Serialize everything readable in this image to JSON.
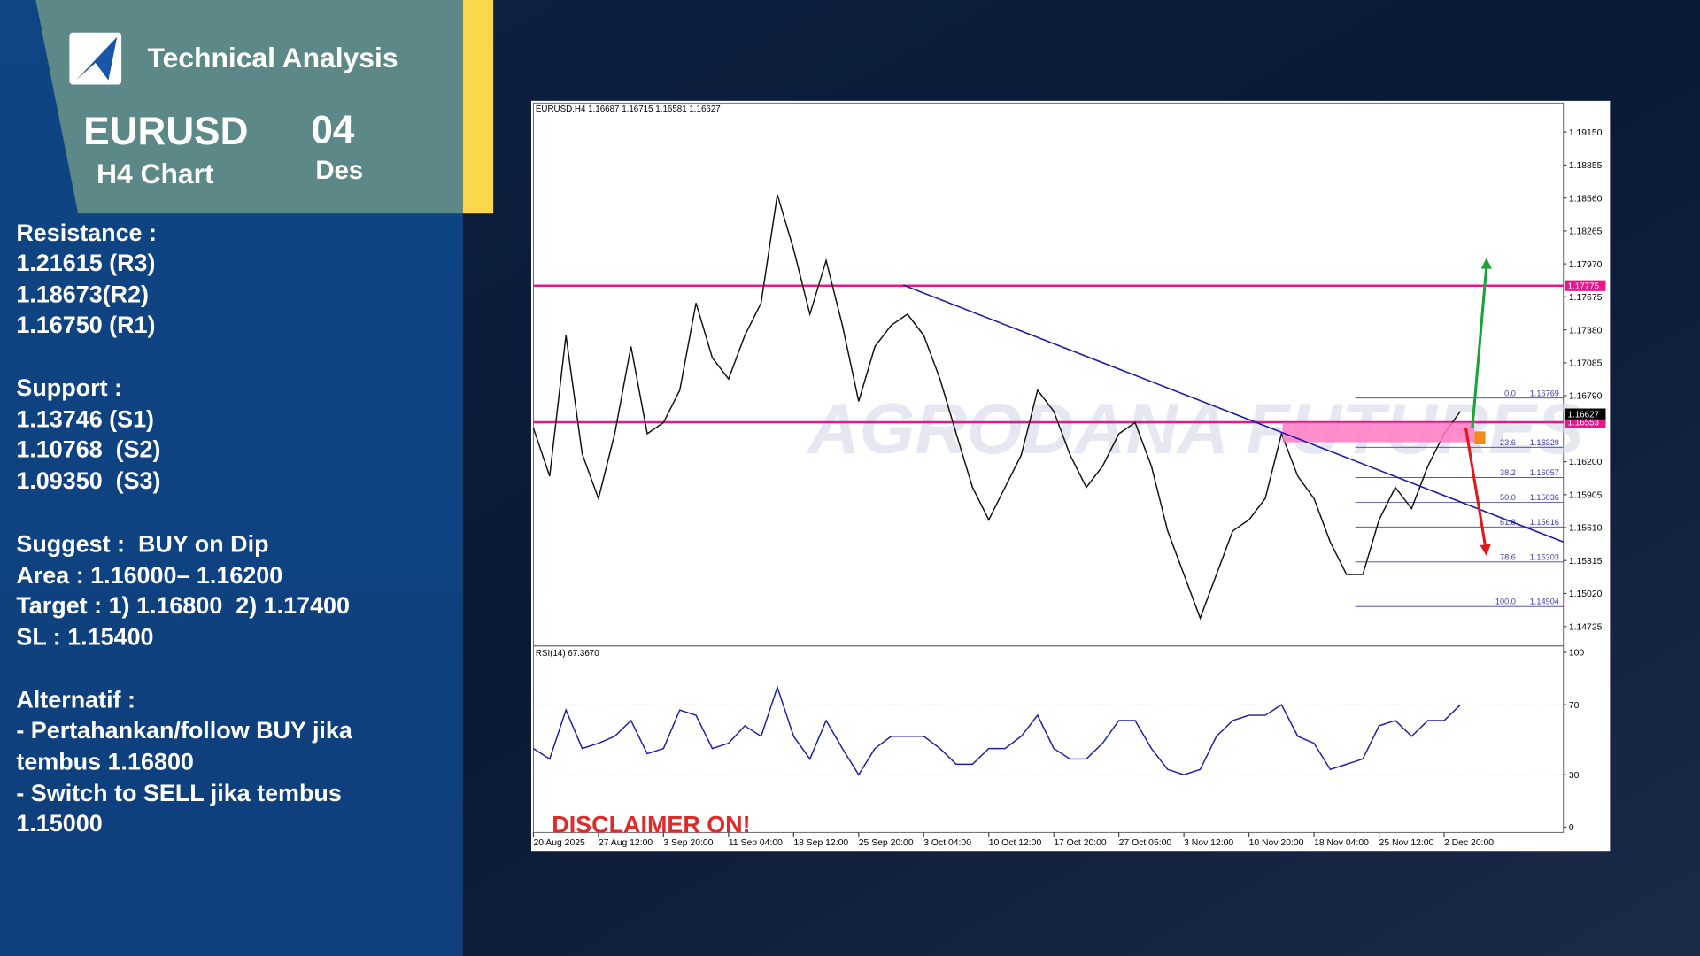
{
  "header": {
    "title": "Technical Analysis",
    "pair": "EURUSD",
    "timeframe": "H4 Chart",
    "day": "04",
    "month": "Des"
  },
  "notes": [
    "Resistance :",
    "1.21615 (R3)",
    "1.18673(R2)",
    "1.16750 (R1)",
    "Support :",
    "1.13746 (S1)",
    "1.10768  (S2)",
    "1.09350  (S3)",
    "Suggest :  BUY on Dip",
    "Area : 1.16000– 1.16200",
    "Target : 1) 1.16800  2) 1.17400",
    "SL : 1.15400",
    "Alternatif :",
    "- Pertahankan/follow BUY jika",
    "tembus 1.16800",
    "- Switch to SELL jika tembus",
    "1.15000"
  ],
  "chart_data": [
    {
      "type": "line",
      "title": "EURUSD,H4  1.16687 1.16715 1.16581 1.16627",
      "watermark": "AGRODANA FUTURES",
      "color": "#111111",
      "categories": [
        "20 Aug 2025",
        null,
        null,
        null,
        "27 Aug 12:00",
        null,
        null,
        null,
        "3 Sep 20:00",
        null,
        null,
        null,
        "11 Sep 04:00",
        null,
        null,
        null,
        "18 Sep 12:00",
        null,
        null,
        null,
        "25 Sep 20:00",
        null,
        null,
        null,
        "3 Oct 04:00",
        null,
        null,
        null,
        "10 Oct 12:00",
        null,
        null,
        null,
        "17 Oct 20:00",
        null,
        null,
        null,
        "27 Oct 05:00",
        null,
        null,
        null,
        "3 Nov 12:00",
        null,
        null,
        null,
        "10 Nov 20:00",
        null,
        null,
        null,
        "18 Nov 04:00",
        null,
        null,
        null,
        "25 Nov 12:00",
        null,
        null,
        null,
        "2 Dec 20:00",
        null
      ],
      "values": [
        1.165,
        1.1607,
        1.1733,
        1.1627,
        1.1587,
        1.1645,
        1.1723,
        1.1645,
        1.1655,
        1.1684,
        1.1762,
        1.1713,
        1.1694,
        1.1733,
        1.1762,
        1.1859,
        1.181,
        1.1752,
        1.18,
        1.1742,
        1.1674,
        1.1723,
        1.1742,
        1.1752,
        1.1733,
        1.1694,
        1.1645,
        1.1597,
        1.1568,
        1.1597,
        1.1626,
        1.1684,
        1.1665,
        1.1626,
        1.1597,
        1.1616,
        1.1645,
        1.1655,
        1.1616,
        1.1558,
        1.1519,
        1.148,
        1.1519,
        1.1558,
        1.1568,
        1.1587,
        1.1645,
        1.1607,
        1.1587,
        1.1548,
        1.1519,
        1.1519,
        1.1568,
        1.1597,
        1.1578,
        1.1616,
        1.1645,
        1.1665
      ],
      "ylim": [
        1.1456,
        1.1941
      ],
      "yticks": [
        {
          "value": 1.1915,
          "label": "1.19150"
        },
        1.18855,
        {
          "value": 1.1856,
          "label": "1.18560"
        },
        1.18265,
        {
          "value": 1.1797,
          "label": "1.17970"
        },
        1.17675,
        {
          "value": 1.1738,
          "label": "1.17380"
        },
        1.17085,
        {
          "value": 1.1679,
          "label": "1.16790"
        },
        {
          "value": 1.162,
          "label": "1.16200"
        },
        1.15905,
        {
          "value": 1.1561,
          "label": "1.15610"
        },
        1.15315,
        {
          "value": 1.1502,
          "label": "1.15020"
        },
        1.14725
      ],
      "hlines": [
        1.17775,
        1.16553
      ],
      "hline_color": "#e8178a",
      "last_price": 1.16627,
      "fib_color": "#3b3bb0",
      "fib": [
        {
          "label": "0.0",
          "price": 1.16769
        },
        {
          "label": "23.6",
          "price": 1.16329
        },
        {
          "label": "38.2",
          "price": 1.16057
        },
        {
          "label": "50.0",
          "price": 1.15836
        },
        {
          "label": "61.8",
          "price": 1.15616
        },
        {
          "label": "78.6",
          "price": 1.15303
        },
        {
          "label": "100.0",
          "price": 1.14904
        }
      ]
    },
    {
      "type": "line",
      "title": "RSI(14) 67.3670",
      "color": "#1c1ca8",
      "annotation": "DISCLAIMER ON!",
      "values": [
        45,
        39,
        67,
        45,
        48,
        52,
        61,
        42,
        45,
        67,
        64,
        45,
        48,
        58,
        52,
        80,
        52,
        39,
        61,
        45,
        30,
        45,
        52,
        52,
        52,
        45,
        36,
        36,
        45,
        45,
        52,
        64,
        45,
        39,
        39,
        48,
        61,
        61,
        45,
        33,
        30,
        33,
        52,
        61,
        64,
        64,
        70,
        52,
        48,
        33,
        36,
        39,
        58,
        61,
        52,
        61,
        61,
        70
      ],
      "ylim": [
        -3,
        103
      ],
      "yticks": [
        100,
        70,
        30,
        0
      ],
      "grid": true
    }
  ]
}
